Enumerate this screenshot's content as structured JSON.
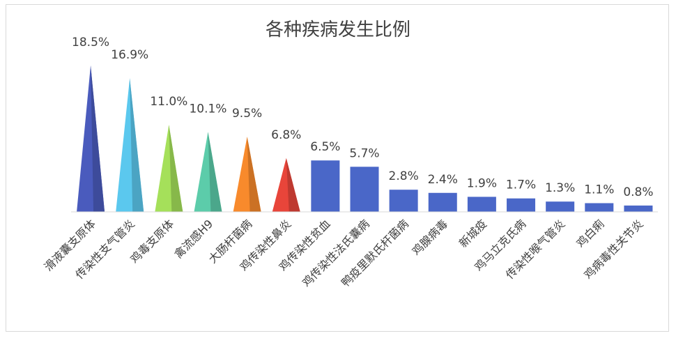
{
  "chart_data": {
    "type": "bar",
    "title": "各种疾病发生比例",
    "xlabel": "",
    "ylabel": "",
    "ylim": [
      0,
      20
    ],
    "grid": false,
    "legend": "none",
    "categories": [
      "滑液囊支原体",
      "传染性支气管炎",
      "鸡毒支原体",
      "禽流感H9",
      "大肠杆菌病",
      "鸡传染性鼻炎",
      "鸡传染性贫血",
      "鸡传染性法氏囊病",
      "鸭疫里默氏杆菌病",
      "鸡腺病毒",
      "新城疫",
      "鸡马立克氏病",
      "传染性喉气管炎",
      "鸡白痢",
      "鸡病毒性关节炎"
    ],
    "values": [
      18.5,
      16.9,
      11.0,
      10.1,
      9.5,
      6.8,
      6.5,
      5.7,
      2.8,
      2.4,
      1.9,
      1.7,
      1.3,
      1.1,
      0.8
    ],
    "value_labels": [
      "18.5%",
      "16.9%",
      "11.0%",
      "10.1%",
      "9.5%",
      "6.8%",
      "6.5%",
      "5.7%",
      "2.8%",
      "2.4%",
      "1.9%",
      "1.7%",
      "1.3%",
      "1.1%",
      "0.8%"
    ],
    "shapes": [
      "cone",
      "cone",
      "cone",
      "cone",
      "cone",
      "cone",
      "bar",
      "bar",
      "bar",
      "bar",
      "bar",
      "bar",
      "bar",
      "bar",
      "bar"
    ],
    "colors": [
      "#4a5bbd",
      "#5bc8ee",
      "#a5e05a",
      "#5cccaa",
      "#f88a2c",
      "#e8453a",
      "#4a67c8",
      "#4a67c8",
      "#4a67c8",
      "#4a67c8",
      "#4a67c8",
      "#4a67c8",
      "#4a67c8",
      "#4a67c8",
      "#4a67c8"
    ]
  }
}
